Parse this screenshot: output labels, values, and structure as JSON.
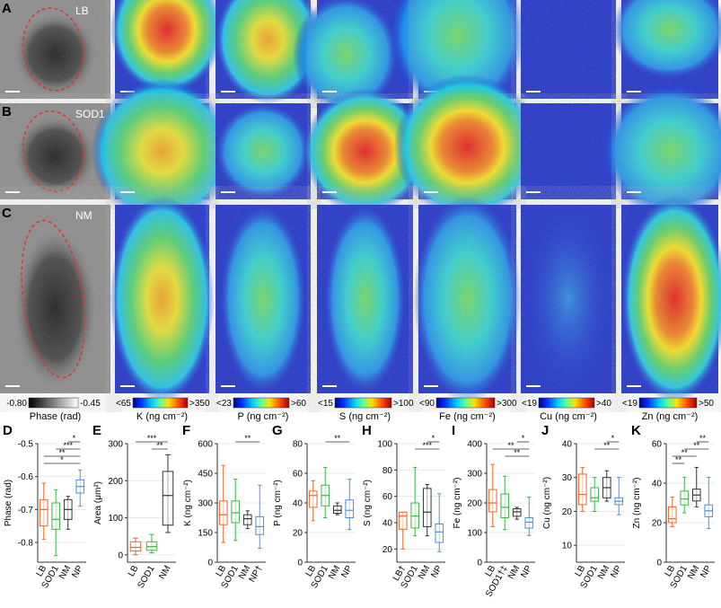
{
  "image_rows": [
    {
      "panel": "A",
      "label": "LB"
    },
    {
      "panel": "B",
      "label": "SOD1"
    },
    {
      "panel": "C",
      "label": "NM"
    }
  ],
  "colorbars": [
    {
      "min": "-0.80",
      "max": "-0.45",
      "label": "Phase (rad)"
    },
    {
      "min": "<65",
      "max": ">350",
      "label": "K (ng cm⁻²)"
    },
    {
      "min": "<23",
      "max": ">60",
      "label": "P (ng cm⁻²)"
    },
    {
      "min": "<15",
      "max": ">100",
      "label": "S (ng cm⁻²)"
    },
    {
      "min": "<90",
      "max": ">300",
      "label": "Fe (ng cm⁻²)"
    },
    {
      "min": "<19",
      "max": ">40",
      "label": "Cu (ng cm⁻²)"
    },
    {
      "min": "<19",
      "max": ">50",
      "label": "Zn (ng cm⁻²)"
    }
  ],
  "box_panels": [
    {
      "panel": "D",
      "ylabel": "Phase (rad)",
      "ylim": [
        -0.86,
        -0.5
      ],
      "yticks": [
        -0.8,
        -0.7,
        -0.6,
        -0.5
      ],
      "groups": [
        {
          "name": "LB",
          "color": "#e8692a",
          "stats": [
            -0.79,
            -0.75,
            -0.7,
            -0.67,
            -0.62
          ]
        },
        {
          "name": "SOD1",
          "color": "#3cb44b",
          "stats": [
            -0.84,
            -0.76,
            -0.73,
            -0.68,
            -0.64
          ]
        },
        {
          "name": "NM",
          "color": "#333333",
          "stats": [
            -0.76,
            -0.73,
            -0.7,
            -0.67,
            -0.66
          ]
        },
        {
          "name": "NP",
          "color": "#4a90d9",
          "stats": [
            -0.69,
            -0.65,
            -0.63,
            -0.61,
            -0.58
          ]
        }
      ],
      "significance": [
        {
          "label": "*",
          "between": [
            2,
            3
          ]
        },
        {
          "label": "***",
          "between": [
            1,
            3
          ]
        },
        {
          "label": "**",
          "between": [
            0,
            3
          ]
        },
        {
          "label": "*",
          "between": [
            0,
            3
          ]
        }
      ]
    },
    {
      "panel": "E",
      "ylabel": "Area (μm²)",
      "ylim": [
        -20,
        300
      ],
      "yticks": [
        0,
        100,
        200,
        300
      ],
      "groups": [
        {
          "name": "LB",
          "color": "#e8692a",
          "stats": [
            0,
            10,
            20,
            35,
            45
          ]
        },
        {
          "name": "SOD1",
          "color": "#3cb44b",
          "stats": [
            5,
            12,
            22,
            35,
            55
          ]
        },
        {
          "name": "NM",
          "color": "#333333",
          "stats": [
            60,
            80,
            160,
            225,
            270
          ]
        }
      ],
      "significance": [
        {
          "label": "***",
          "between": [
            0,
            2
          ]
        },
        {
          "label": "**",
          "between": [
            1,
            2
          ]
        }
      ]
    },
    {
      "panel": "F",
      "ylabel": "K (ng cm⁻²)",
      "ylim": [
        0,
        600
      ],
      "yticks": [
        0,
        150,
        300,
        450,
        600
      ],
      "groups": [
        {
          "name": "LB",
          "color": "#e8692a",
          "stats": [
            100,
            190,
            240,
            310,
            490
          ]
        },
        {
          "name": "SOD1",
          "color": "#3cb44b",
          "stats": [
            110,
            200,
            250,
            310,
            420
          ]
        },
        {
          "name": "NM",
          "color": "#333333",
          "stats": [
            170,
            190,
            220,
            240,
            260
          ]
        },
        {
          "name": "NP†",
          "color": "#4a90d9",
          "stats": [
            70,
            140,
            180,
            230,
            390
          ]
        }
      ],
      "significance": [
        {
          "label": "**",
          "between": [
            1,
            3
          ]
        }
      ]
    },
    {
      "panel": "G",
      "ylabel": "P (ng cm⁻²)",
      "ylim": [
        0,
        80
      ],
      "yticks": [
        0,
        20,
        40,
        60,
        80
      ],
      "groups": [
        {
          "name": "LB",
          "color": "#e8692a",
          "stats": [
            28,
            37,
            45,
            48,
            55
          ]
        },
        {
          "name": "SOD1",
          "color": "#3cb44b",
          "stats": [
            30,
            38,
            45,
            52,
            64
          ]
        },
        {
          "name": "NM",
          "color": "#333333",
          "stats": [
            32,
            33,
            35,
            38,
            40
          ]
        },
        {
          "name": "NP",
          "color": "#4a90d9",
          "stats": [
            22,
            30,
            35,
            42,
            56
          ]
        }
      ],
      "significance": [
        {
          "label": "**",
          "between": [
            1,
            3
          ]
        }
      ]
    },
    {
      "panel": "H",
      "ylabel": "S (ng cm⁻²)",
      "ylim": [
        10,
        100
      ],
      "yticks": [
        20,
        40,
        60,
        80,
        100
      ],
      "groups": [
        {
          "name": "LB†",
          "color": "#e8692a",
          "stats": [
            20,
            35,
            45,
            48,
            48
          ]
        },
        {
          "name": "SOD1",
          "color": "#3cb44b",
          "stats": [
            30,
            36,
            45,
            55,
            82
          ]
        },
        {
          "name": "NM",
          "color": "#333333",
          "stats": [
            30,
            37,
            48,
            66,
            69
          ]
        },
        {
          "name": "NP",
          "color": "#4a90d9",
          "stats": [
            18,
            25,
            33,
            39,
            62
          ]
        }
      ],
      "significance": [
        {
          "label": "*",
          "between": [
            2,
            3
          ]
        },
        {
          "label": "***",
          "between": [
            1,
            3
          ]
        }
      ]
    },
    {
      "panel": "I",
      "ylabel": "Fe (ng cm⁻²)",
      "ylim": [
        0,
        400
      ],
      "yticks": [
        0,
        100,
        200,
        300,
        400
      ],
      "groups": [
        {
          "name": "LB",
          "color": "#e8692a",
          "stats": [
            120,
            170,
            200,
            245,
            330
          ]
        },
        {
          "name": "SOD1†‡",
          "color": "#3cb44b",
          "stats": [
            110,
            150,
            185,
            230,
            290
          ]
        },
        {
          "name": "NM",
          "color": "#333333",
          "stats": [
            145,
            155,
            170,
            180,
            185
          ]
        },
        {
          "name": "NP",
          "color": "#4a90d9",
          "stats": [
            90,
            115,
            135,
            150,
            220
          ]
        }
      ],
      "significance": [
        {
          "label": "*",
          "between": [
            2,
            3
          ]
        },
        {
          "label": "**",
          "between": [
            0,
            3
          ]
        },
        {
          "label": "**",
          "between": [
            1,
            3
          ]
        }
      ]
    },
    {
      "panel": "J",
      "ylabel": "Cu (ng cm⁻²)",
      "ylim": [
        5,
        40
      ],
      "yticks": [
        10,
        20,
        30,
        40
      ],
      "groups": [
        {
          "name": "LB",
          "color": "#e8692a",
          "stats": [
            20,
            22,
            25,
            31,
            33
          ]
        },
        {
          "name": "SOD1",
          "color": "#3cb44b",
          "stats": [
            20,
            23,
            24,
            27,
            30
          ]
        },
        {
          "name": "NM",
          "color": "#333333",
          "stats": [
            23,
            24,
            27,
            30,
            32
          ]
        },
        {
          "name": "NP",
          "color": "#4a90d9",
          "stats": [
            19,
            22,
            23,
            24,
            30
          ]
        }
      ],
      "significance": [
        {
          "label": "*",
          "between": [
            2,
            3
          ]
        },
        {
          "label": "**",
          "between": [
            1,
            3
          ]
        }
      ]
    },
    {
      "panel": "K",
      "ylabel": "Zn (ng cm⁻²)",
      "ylim": [
        0,
        60
      ],
      "yticks": [
        0,
        20,
        40,
        60
      ],
      "groups": [
        {
          "name": "LB",
          "color": "#e8692a",
          "stats": [
            18,
            20,
            22,
            28,
            33
          ]
        },
        {
          "name": "SOD1",
          "color": "#3cb44b",
          "stats": [
            25,
            29,
            32,
            36,
            43
          ]
        },
        {
          "name": "NM",
          "color": "#333333",
          "stats": [
            28,
            31,
            34,
            37,
            48
          ]
        },
        {
          "name": "NP",
          "color": "#4a90d9",
          "stats": [
            17,
            23,
            26,
            29,
            43
          ]
        }
      ],
      "significance": [
        {
          "label": "**",
          "between": [
            2,
            3
          ]
        },
        {
          "label": "**",
          "between": [
            1,
            3
          ]
        },
        {
          "label": "**",
          "between": [
            0,
            2
          ]
        },
        {
          "label": "**",
          "between": [
            0,
            1
          ]
        }
      ]
    }
  ]
}
